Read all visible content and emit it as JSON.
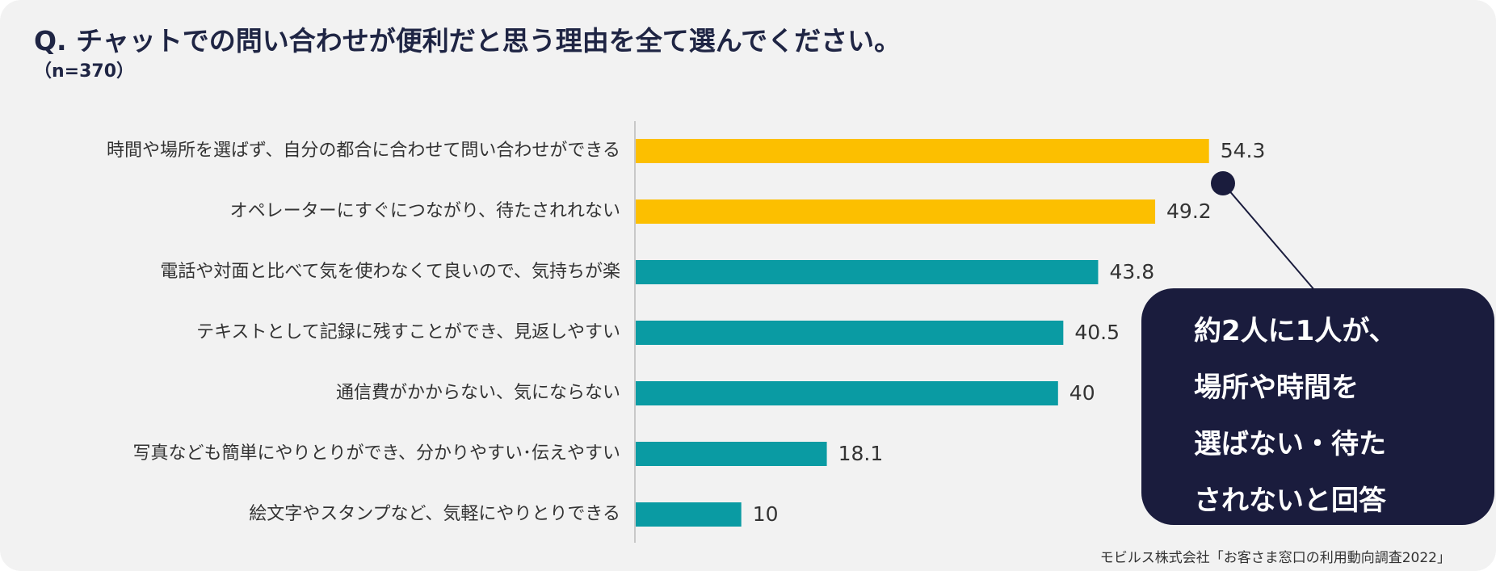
{
  "header": {
    "title": "Q. チャットでの問い合わせが便利だと思う理由を全て選んでください。",
    "subtitle": "（n=370）"
  },
  "chart_data": {
    "type": "bar",
    "orientation": "horizontal",
    "title": "Q. チャットでの問い合わせが便利だと思う理由を全て選んでください。",
    "xlabel": "",
    "ylabel": "",
    "xlim": [
      0,
      60
    ],
    "grid": false,
    "categories": [
      "時間や場所を選ばず、自分の都合に合わせて問い合わせができる",
      "オペレーターにすぐにつながり、待たされれない",
      "電話や対面と比べて気を使わなくて良いので、気持ちが楽",
      "テキストとして記録に残すことができ、見返しやすい",
      "通信費がかからない、気にならない",
      "写真なども簡単にやりとりができ、分かりやすい･伝えやすい",
      "絵文字やスタンプなど、気軽にやりとりできる"
    ],
    "values": [
      54.3,
      49.2,
      43.8,
      40.5,
      40,
      18.1,
      10
    ],
    "value_labels": [
      "54.3",
      "49.2",
      "43.8",
      "40.5",
      "40",
      "18.1",
      "10"
    ],
    "colors": [
      "#fcbf00",
      "#fcbf00",
      "#0a9ba3",
      "#0a9ba3",
      "#0a9ba3",
      "#0a9ba3",
      "#0a9ba3"
    ]
  },
  "callout": {
    "lines": [
      "約2人に1人が、",
      "場所や時間を",
      "選ばない・待た",
      "されないと回答"
    ]
  },
  "source": "モビルス株式会社「お客さま窓口の利用動向調査2022」",
  "colors": {
    "highlight": "#fcbf00",
    "base": "#0a9ba3",
    "callout_bg": "#1a1c3d",
    "title": "#1f2544"
  }
}
